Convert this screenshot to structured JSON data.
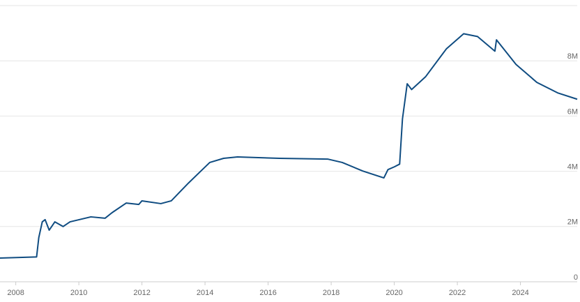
{
  "chart_data": {
    "type": "line",
    "x": [
      2007.5,
      2008.66,
      2008.73,
      2008.84,
      2008.93,
      2009.06,
      2009.24,
      2009.5,
      2009.72,
      2010.38,
      2010.83,
      2011.05,
      2011.5,
      2011.9,
      2012.0,
      2012.6,
      2012.93,
      2013.48,
      2014.15,
      2014.59,
      2015.03,
      2016.36,
      2017.9,
      2018.35,
      2019.0,
      2019.67,
      2019.8,
      2020.0,
      2020.17,
      2020.26,
      2020.41,
      2020.55,
      2020.99,
      2021.65,
      2022.2,
      2022.64,
      2023.19,
      2023.24,
      2023.86,
      2024.52,
      2025.18,
      2025.8
    ],
    "series": [
      {
        "color": "#0f4c81",
        "values": [
          860000,
          900000,
          1600000,
          2170000,
          2250000,
          1870000,
          2170000,
          2000000,
          2170000,
          2350000,
          2300000,
          2500000,
          2850000,
          2800000,
          2930000,
          2830000,
          2930000,
          3580000,
          4320000,
          4470000,
          4520000,
          4470000,
          4440000,
          4320000,
          4010000,
          3760000,
          4060000,
          4160000,
          4260000,
          5900000,
          7170000,
          6960000,
          7420000,
          8430000,
          8980000,
          8880000,
          8350000,
          8760000,
          7870000,
          7220000,
          6840000,
          6610000
        ]
      }
    ],
    "xlim": [
      2007.5,
      2025.8
    ],
    "xticks": [
      2008,
      2010,
      2012,
      2014,
      2016,
      2018,
      2020,
      2022,
      2024
    ],
    "ylim": [
      0,
      10000000
    ],
    "yticks": [
      0,
      {
        "value": 2000000,
        "label": "2M"
      },
      {
        "value": 4000000,
        "label": "4M"
      },
      {
        "value": 6000000,
        "label": "6M"
      },
      {
        "value": 8000000,
        "label": "8M"
      }
    ],
    "grid": true
  }
}
